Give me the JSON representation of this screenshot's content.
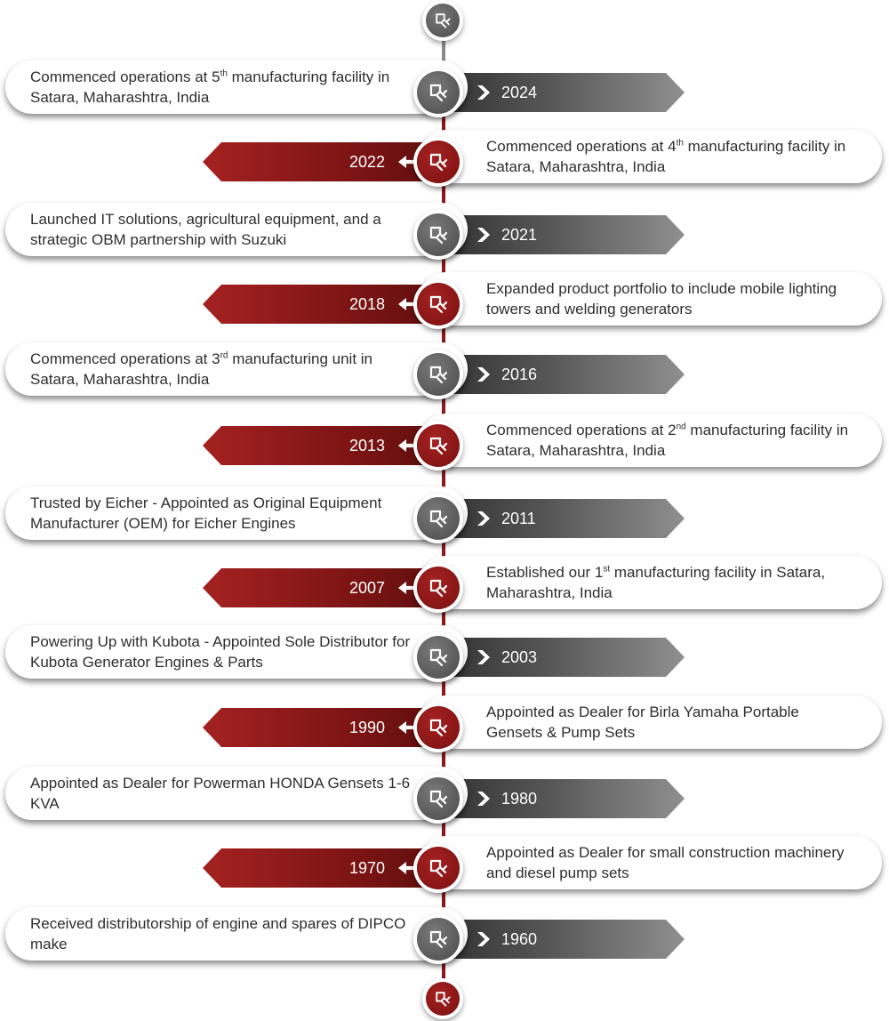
{
  "colors": {
    "accent_red": "#8b1a1a",
    "accent_gray": "#5a5a5a",
    "card_text": "#2e2e2e"
  },
  "icons": {
    "badge": "power-plug-icon",
    "left_arrow": "chevron-right-icon",
    "right_arrow": "arrow-left-icon"
  },
  "events": [
    {
      "year": "2024",
      "pre": "Commenced operations at 5",
      "sup": "th",
      "post": " manufacturing facility in Satara, Maharashtra, India"
    },
    {
      "year": "2022",
      "pre": "Commenced operations at 4",
      "sup": "th",
      "post": " manufacturing facility in Satara, Maharashtra, India"
    },
    {
      "year": "2021",
      "pre": "Launched IT solutions, agricultural equipment, and a strategic OBM partnership with Suzuki",
      "sup": "",
      "post": ""
    },
    {
      "year": "2018",
      "pre": "Expanded product portfolio to include mobile lighting towers and welding generators",
      "sup": "",
      "post": ""
    },
    {
      "year": "2016",
      "pre": "Commenced operations at 3",
      "sup": "rd",
      "post": " manufacturing unit in Satara, Maharashtra, India"
    },
    {
      "year": "2013",
      "pre": "Commenced operations at 2",
      "sup": "nd",
      "post": " manufacturing facility in Satara, Maharashtra, India"
    },
    {
      "year": "2011",
      "pre": "Trusted by Eicher - Appointed as Original Equipment Manufacturer (OEM) for Eicher Engines",
      "sup": "",
      "post": ""
    },
    {
      "year": "2007",
      "pre": "Established our 1",
      "sup": "st",
      "post": " manufacturing facility in Satara, Maharashtra, India"
    },
    {
      "year": "2003",
      "pre": "Powering Up with Kubota - Appointed Sole Distributor for Kubota Generator Engines & Parts",
      "sup": "",
      "post": ""
    },
    {
      "year": "1990",
      "pre": "Appointed as Dealer for Birla Yamaha Portable Gensets & Pump Sets",
      "sup": "",
      "post": ""
    },
    {
      "year": "1980",
      "pre": "Appointed as Dealer for Powerman HONDA Gensets 1-6 KVA",
      "sup": "",
      "post": ""
    },
    {
      "year": "1970",
      "pre": "Appointed as Dealer for small construction machinery and diesel pump sets",
      "sup": "",
      "post": ""
    },
    {
      "year": "1960",
      "pre": "Received distributorship of engine and spares of DIPCO make",
      "sup": "",
      "post": ""
    }
  ]
}
